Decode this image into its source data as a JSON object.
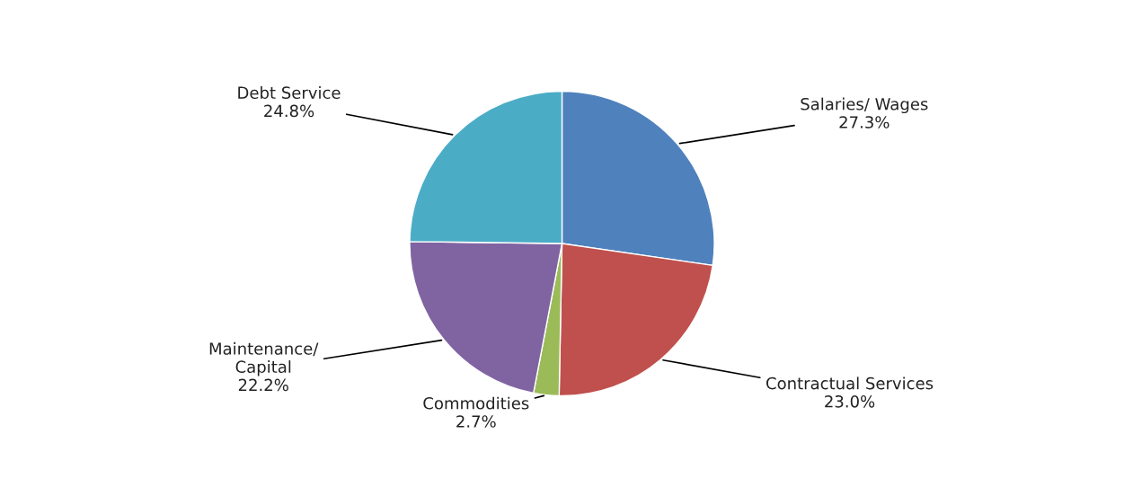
{
  "chart_data": {
    "type": "pie",
    "categories": [
      "Salaries/ Wages",
      "Contractual Services",
      "Commodities",
      "Maintenance/\nCapital",
      "Debt Service"
    ],
    "values": [
      27.3,
      23.0,
      2.7,
      22.2,
      24.8
    ],
    "colors": [
      "#4f81bd",
      "#c0504d",
      "#9bbb59",
      "#8064a2",
      "#4bacc6"
    ],
    "value_labels": [
      "27.3%",
      "23.0%",
      "2.7%",
      "22.2%",
      "24.8%"
    ],
    "legend": false
  }
}
